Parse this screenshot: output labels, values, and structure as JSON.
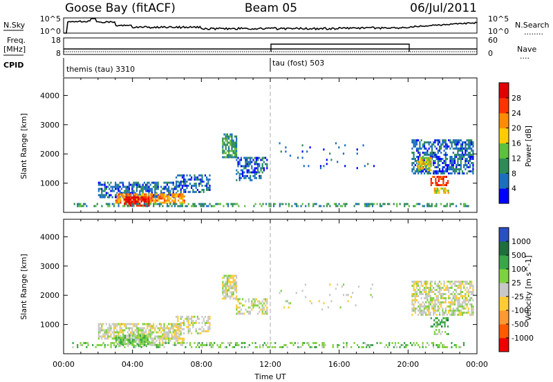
{
  "header": {
    "radar": "Goose Bay (fitACF)",
    "beam": "Beam 05",
    "date": "06/Jul/2011"
  },
  "panels": {
    "noise": {
      "left_label": "N.Sky",
      "right_label": "N.Search",
      "right_label_dots": "........",
      "tick_top": "10^5",
      "tick_bottom": "10^0"
    },
    "freq": {
      "left_label_1": "Freq.",
      "left_label_2": "[MHz]",
      "right_label": "Nave",
      "right_label_dots": "....",
      "left_ticks": [
        "18",
        "8"
      ],
      "right_ticks": [
        "60",
        "0"
      ]
    },
    "cpid": {
      "label": "CPID",
      "modes": [
        {
          "name": "themis (tau) 3310",
          "start_hour": 0
        },
        {
          "name": "tau (fost) 503",
          "start_hour": 12
        }
      ]
    }
  },
  "chart_data": [
    {
      "type": "heatmap",
      "title": "",
      "parameter": "Power",
      "ylabel": "Slant Range [km]",
      "xlabel": "Time UT",
      "xlim_hours": [
        0,
        24
      ],
      "ylim": [
        0,
        4600
      ],
      "yticks": [
        1000,
        2000,
        3000,
        4000
      ],
      "xtick_labels": [
        "00:00",
        "04:00",
        "08:00",
        "12:00",
        "16:00",
        "20:00",
        "00:00"
      ],
      "colorbar": {
        "label": "Power [dB]",
        "tick_labels": [
          "4",
          "8",
          "12",
          "16",
          "20",
          "24",
          "28"
        ],
        "colors": [
          "#0000ff",
          "#1c6fbf",
          "#2e8b57",
          "#5fbf3f",
          "#ffcc00",
          "#ff8c00",
          "#ff3300",
          "#e00000"
        ]
      },
      "regions": [
        {
          "t": [
            2.0,
            6.8
          ],
          "r": [
            500,
            1050
          ],
          "level": 1,
          "density": 0.6
        },
        {
          "t": [
            3.0,
            7.0
          ],
          "r": [
            350,
            650
          ],
          "level": 5,
          "density": 0.7
        },
        {
          "t": [
            3.5,
            5.0
          ],
          "r": [
            250,
            550
          ],
          "level": 7,
          "density": 0.8
        },
        {
          "t": [
            6.5,
            8.5
          ],
          "r": [
            700,
            1300
          ],
          "level": 1,
          "density": 0.5
        },
        {
          "t": [
            0.5,
            23.5
          ],
          "r": [
            200,
            320
          ],
          "level": 2,
          "density": 0.4
        },
        {
          "t": [
            9.2,
            10.0
          ],
          "r": [
            1900,
            2700
          ],
          "level": 2,
          "density": 0.7
        },
        {
          "t": [
            10.0,
            11.8
          ],
          "r": [
            1350,
            1900
          ],
          "level": 1,
          "density": 0.5
        },
        {
          "t": [
            10.0,
            11.5
          ],
          "r": [
            1100,
            1350
          ],
          "level": 1,
          "density": 0.5
        },
        {
          "t": [
            12.5,
            18.0
          ],
          "r": [
            1500,
            2400
          ],
          "level": 1,
          "density": 0.05
        },
        {
          "t": [
            20.2,
            23.8
          ],
          "r": [
            1300,
            2500
          ],
          "level": 1,
          "density": 0.6
        },
        {
          "t": [
            20.5,
            21.3
          ],
          "r": [
            1450,
            1900
          ],
          "level": 4,
          "density": 0.7
        },
        {
          "t": [
            21.3,
            22.3
          ],
          "r": [
            950,
            1250
          ],
          "level": 6,
          "density": 0.6
        },
        {
          "t": [
            21.5,
            22.3
          ],
          "r": [
            700,
            850
          ],
          "level": 4,
          "density": 0.6
        }
      ]
    },
    {
      "type": "heatmap",
      "title": "",
      "parameter": "Velocity",
      "ylabel": "Slant Range [km]",
      "xlabel": "Time UT",
      "xlim_hours": [
        0,
        24
      ],
      "ylim": [
        0,
        4600
      ],
      "yticks": [
        1000,
        2000,
        3000,
        4000
      ],
      "xtick_labels": [
        "00:00",
        "04:00",
        "08:00",
        "12:00",
        "16:00",
        "20:00",
        "00:00"
      ],
      "colorbar": {
        "label": "Velocity [m s^-1]",
        "tick_labels": [
          "1000",
          "500",
          "100",
          "25",
          "-25",
          "-100",
          "-500",
          "-1000"
        ],
        "colors": [
          "#2a4fbf",
          "#1f6e3c",
          "#3aa64a",
          "#7fd23f",
          "#c8c8c8",
          "#ffcc33",
          "#ff9933",
          "#ff5a00",
          "#ee0000"
        ]
      },
      "regions": [
        {
          "t": [
            2.0,
            6.8
          ],
          "r": [
            500,
            1050
          ],
          "level": 4,
          "density": 0.7
        },
        {
          "t": [
            3.0,
            5.0
          ],
          "r": [
            250,
            650
          ],
          "level": 3,
          "density": 0.8
        },
        {
          "t": [
            5.0,
            7.0
          ],
          "r": [
            300,
            550
          ],
          "level": 4,
          "density": 0.6
        },
        {
          "t": [
            0.5,
            23.5
          ],
          "r": [
            200,
            400
          ],
          "level": 3,
          "density": 0.3
        },
        {
          "t": [
            6.5,
            8.5
          ],
          "r": [
            700,
            1300
          ],
          "level": 4,
          "density": 0.5
        },
        {
          "t": [
            9.2,
            10.0
          ],
          "r": [
            1900,
            2700
          ],
          "level": 4,
          "density": 0.7
        },
        {
          "t": [
            10.0,
            11.8
          ],
          "r": [
            1350,
            1900
          ],
          "level": 4,
          "density": 0.5
        },
        {
          "t": [
            12.5,
            18.0
          ],
          "r": [
            1500,
            2400
          ],
          "level": 4,
          "density": 0.05
        },
        {
          "t": [
            20.2,
            23.8
          ],
          "r": [
            1300,
            2500
          ],
          "level": 4,
          "density": 0.6
        },
        {
          "t": [
            21.3,
            22.3
          ],
          "r": [
            950,
            1250
          ],
          "level": 2,
          "density": 0.6
        },
        {
          "t": [
            21.5,
            22.3
          ],
          "r": [
            700,
            850
          ],
          "level": 3,
          "density": 0.6
        }
      ]
    }
  ]
}
